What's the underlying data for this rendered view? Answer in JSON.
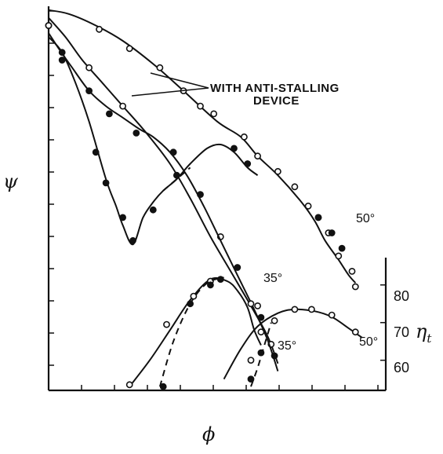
{
  "chart_data": {
    "type": "line",
    "title": "",
    "xlabel": "ϕ",
    "ylabel_left": "ψ",
    "ylabel_right_symbol": "η",
    "ylabel_right_subscript": "t",
    "right_axis_ticks": [
      "80",
      "70",
      "60"
    ],
    "eta_ticks_values": [
      80,
      70,
      60
    ],
    "annotation": {
      "line1": "WITH ANTI-STALLING",
      "line2": "DEVICE"
    },
    "curve_labels": {
      "psi_50": "50°",
      "psi_35": "35°",
      "eta_35": "35°",
      "eta_50": "50°"
    },
    "colors": {
      "ink": "#111111",
      "background": "#ffffff"
    },
    "xlim": [
      0,
      1
    ],
    "psi_ylim": [
      0,
      1
    ],
    "eta_ylim": [
      52,
      86
    ],
    "series": [
      {
        "key": "psi50_device",
        "marker": "open",
        "style": "solid",
        "x": [
          0.0,
          0.06,
          0.14,
          0.22,
          0.31,
          0.4,
          0.5,
          0.57,
          0.62,
          0.68,
          0.75,
          0.79,
          0.82,
          0.86,
          0.89,
          0.91
        ],
        "y": [
          0.99,
          0.98,
          0.95,
          0.91,
          0.85,
          0.78,
          0.7,
          0.66,
          0.61,
          0.56,
          0.49,
          0.44,
          0.39,
          0.34,
          0.3,
          0.28
        ],
        "points_x": [
          0.0,
          0.15,
          0.24,
          0.33,
          0.4,
          0.45,
          0.49,
          0.58,
          0.62,
          0.68,
          0.73,
          0.77,
          0.8,
          0.83,
          0.86,
          0.9,
          0.91
        ],
        "points_y": [
          0.95,
          0.94,
          0.89,
          0.84,
          0.78,
          0.74,
          0.72,
          0.66,
          0.61,
          0.57,
          0.53,
          0.48,
          0.45,
          0.41,
          0.35,
          0.31,
          0.27
        ]
      },
      {
        "key": "psi50_no_device",
        "marker": "filled",
        "style": "solid",
        "x": [
          0.0,
          0.04,
          0.08,
          0.12,
          0.17,
          0.2,
          0.22,
          0.25,
          0.28,
          0.31,
          0.34,
          0.38,
          0.42,
          0.47,
          0.51,
          0.55,
          0.59,
          0.62
        ],
        "y": [
          0.92,
          0.88,
          0.8,
          0.7,
          0.55,
          0.48,
          0.43,
          0.38,
          0.45,
          0.49,
          0.52,
          0.55,
          0.59,
          0.63,
          0.64,
          0.62,
          0.58,
          0.56
        ],
        "points_x": [
          0.0,
          0.04,
          0.14,
          0.17,
          0.22,
          0.25,
          0.31,
          0.38,
          0.55,
          0.59,
          0.8,
          0.84,
          0.87
        ],
        "points_y": [
          0.95,
          0.86,
          0.62,
          0.54,
          0.45,
          0.39,
          0.47,
          0.56,
          0.63,
          0.59,
          0.45,
          0.41,
          0.37
        ],
        "dashed_segment": [
          [
            0.34,
            0.52
          ],
          [
            0.42,
            0.58
          ]
        ]
      },
      {
        "key": "psi35_device",
        "marker": "open",
        "style": "solid",
        "x": [
          0.0,
          0.05,
          0.1,
          0.16,
          0.22,
          0.29,
          0.36,
          0.42,
          0.48,
          0.54,
          0.6,
          0.65,
          0.68
        ],
        "y": [
          0.97,
          0.92,
          0.86,
          0.8,
          0.74,
          0.67,
          0.59,
          0.5,
          0.4,
          0.31,
          0.22,
          0.14,
          0.07
        ],
        "points_x": [
          0.0,
          0.12,
          0.22,
          0.37,
          0.51,
          0.62,
          0.66
        ],
        "points_y": [
          0.95,
          0.84,
          0.74,
          0.62,
          0.4,
          0.22,
          0.12
        ]
      },
      {
        "key": "psi35_no_device",
        "marker": "filled",
        "style": "solid",
        "x": [
          0.0,
          0.03,
          0.07,
          0.12,
          0.17,
          0.22,
          0.27,
          0.31,
          0.36,
          0.41,
          0.46,
          0.51,
          0.56,
          0.61,
          0.65,
          0.68
        ],
        "y": [
          0.93,
          0.89,
          0.84,
          0.78,
          0.74,
          0.71,
          0.68,
          0.66,
          0.62,
          0.56,
          0.48,
          0.39,
          0.3,
          0.21,
          0.13,
          0.05
        ],
        "points_x": [
          0.04,
          0.12,
          0.18,
          0.26,
          0.37,
          0.45,
          0.56,
          0.63,
          0.67
        ],
        "points_y": [
          0.88,
          0.78,
          0.72,
          0.67,
          0.62,
          0.51,
          0.32,
          0.19,
          0.09
        ]
      },
      {
        "key": "eta35_solid",
        "marker": "open",
        "style": "solid",
        "x": [
          0.24,
          0.3,
          0.36,
          0.42,
          0.48,
          0.53,
          0.56,
          0.59,
          0.61,
          0.63
        ],
        "y": [
          53.0,
          60.0,
          68.0,
          76.0,
          81.5,
          81.0,
          78.5,
          74.0,
          68.0,
          64.0
        ],
        "points_x": [
          0.24,
          0.35,
          0.43,
          0.48,
          0.6
        ],
        "points_y": [
          53.5,
          69.5,
          77.0,
          81.0,
          75.0
        ]
      },
      {
        "key": "eta35_dashed",
        "marker": "filled",
        "style": "dashed",
        "x": [
          0.33,
          0.37,
          0.42,
          0.47,
          0.52
        ],
        "y": [
          53.0,
          65.0,
          75.0,
          80.5,
          82.0
        ],
        "points_x": [
          0.34,
          0.42,
          0.48,
          0.51
        ],
        "points_y": [
          53.0,
          75.0,
          80.0,
          81.5
        ]
      },
      {
        "key": "eta50_solid",
        "marker": "open",
        "style": "solid",
        "x": [
          0.52,
          0.57,
          0.62,
          0.68,
          0.73,
          0.79,
          0.84,
          0.89,
          0.93
        ],
        "y": [
          55.0,
          63.0,
          69.0,
          72.5,
          73.5,
          73.0,
          71.5,
          68.5,
          66.0
        ],
        "points_x": [
          0.6,
          0.63,
          0.67,
          0.73,
          0.78,
          0.84,
          0.91
        ],
        "points_y": [
          60.0,
          67.5,
          70.5,
          73.5,
          73.5,
          72.0,
          67.5
        ]
      },
      {
        "key": "eta50_dashed",
        "marker": "filled",
        "style": "dashed",
        "x": [
          0.6,
          0.62,
          0.64,
          0.66
        ],
        "y": [
          53.0,
          58.0,
          64.0,
          70.0
        ],
        "points_x": [
          0.6,
          0.63
        ],
        "points_y": [
          55.0,
          62.0
        ]
      }
    ]
  }
}
